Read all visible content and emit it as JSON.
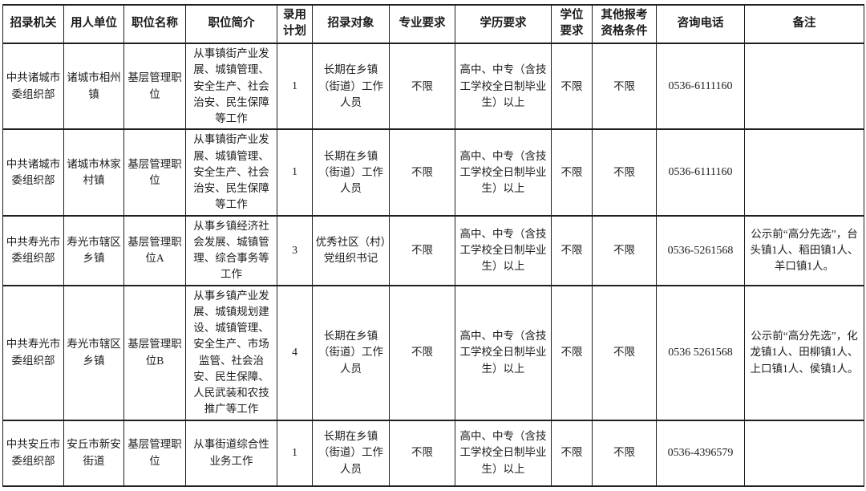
{
  "table": {
    "headers": [
      "招录机关",
      "用人单位",
      "职位名称",
      "职位简介",
      "录用\n计划",
      "招录对象",
      "专业要求",
      "学历要求",
      "学位\n要求",
      "其他报考\n资格条件",
      "咨询电话",
      "备注"
    ],
    "rows": [
      [
        "中共诸城市委组织部",
        "诸城市相州镇",
        "基层管理职位",
        "从事镇街产业发展、城镇管理、安全生产、社会治安、民生保障等工作",
        "1",
        "长期在乡镇（街道）工作人员",
        "不限",
        "高中、中专（含技工学校全日制毕业生）以上",
        "不限",
        "不限",
        "0536-6111160",
        ""
      ],
      [
        "中共诸城市委组织部",
        "诸城市林家村镇",
        "基层管理职位",
        "从事镇街产业发展、城镇管理、安全生产、社会治安、民生保障等工作",
        "1",
        "长期在乡镇（街道）工作人员",
        "不限",
        "高中、中专（含技工学校全日制毕业生）以上",
        "不限",
        "不限",
        "0536-6111160",
        ""
      ],
      [
        "中共寿光市委组织部",
        "寿光市辖区乡镇",
        "基层管理职位A",
        "从事乡镇经济社会发展、城镇管理、综合事务等工作",
        "3",
        "优秀社区（村）党组织书记",
        "不限",
        "高中、中专（含技工学校全日制毕业生）以上",
        "不限",
        "不限",
        "0536-5261568",
        "公示前“高分先选”，台头镇1人、稻田镇1人、羊口镇1人。"
      ],
      [
        "中共寿光市委组织部",
        "寿光市辖区乡镇",
        "基层管理职位B",
        "从事乡镇产业发展、城镇规划建设、城镇管理、安全生产、市场监管、社会治安、民生保障、人民武装和农技推广等工作",
        "4",
        "长期在乡镇（街道）工作人员",
        "不限",
        "高中、中专（含技工学校全日制毕业生）以上",
        "不限",
        "不限",
        "0536 5261568",
        "公示前“高分先选”，化龙镇1人、田柳镇1人、上口镇1人、侯镇1人。"
      ],
      [
        "中共安丘市委组织部",
        "安丘市新安街道",
        "基层管理职位",
        "从事街道综合性业务工作",
        "1",
        "长期在乡镇（街道）工作人员",
        "不限",
        "高中、中专（含技工学校全日制毕业生）以上",
        "不限",
        "不限",
        "0536-4396579",
        ""
      ]
    ]
  }
}
